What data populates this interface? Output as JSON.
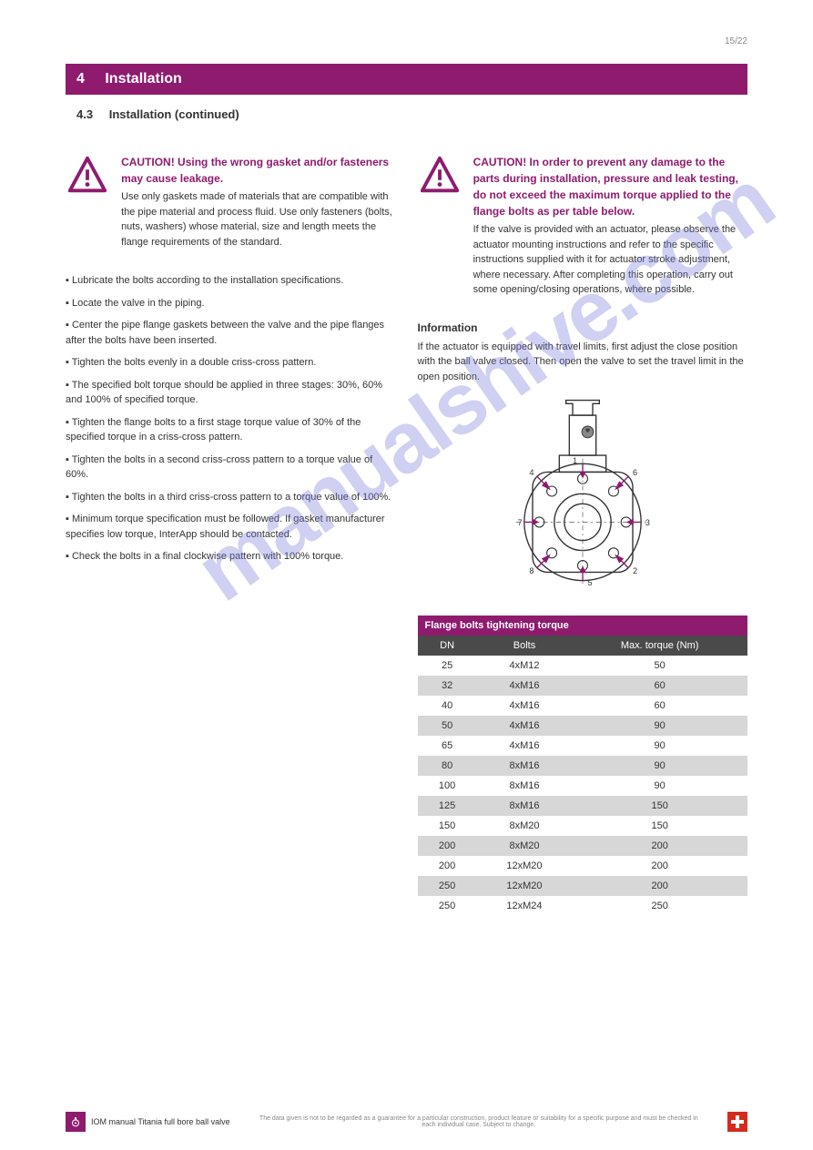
{
  "page_num_top": "15/22",
  "header": {
    "section_num": "4",
    "title": "Installation",
    "subtitle_num": "4.3",
    "subtitle": "Installation (continued)"
  },
  "left_column": {
    "caution": {
      "title": "CAUTION! Using the wrong gasket and/or fasteners may cause leakage.",
      "body": "Use only gaskets made of materials that are compatible with the pipe material and process fluid.\nUse only fasteners (bolts, nuts, washers) whose material, size and length meets the flange requirements of the standard."
    },
    "bullets": [
      "Lubricate the bolts according to the installation specifications.",
      "Locate the valve in the piping.",
      "Center the pipe flange gaskets between the valve and the pipe flanges after the bolts have been inserted.",
      "Tighten the bolts evenly in a double criss-cross pattern.",
      "The specified bolt torque should be applied in three stages: 30%, 60% and 100% of specified torque.",
      "Tighten the flange bolts to a first stage torque value of 30% of the specified torque in a criss-cross pattern.",
      "Tighten the bolts in a second criss-cross pattern to a torque value of 60%.",
      "Tighten the bolts in a third criss-cross pattern to a torque value of 100%.",
      "Minimum torque specification must be followed. If gasket manufacturer specifies low torque, InterApp should be contacted.",
      "Check the bolts in a final clockwise pattern with 100% torque."
    ]
  },
  "right_column": {
    "caution": {
      "title": "CAUTION! In order to prevent any damage to the parts during installation, pressure and leak testing, do not exceed the maximum torque applied to the flange bolts as per table below.",
      "body": "If the valve is provided with an actuator, please observe the actuator mounting instructions and refer to the specific instructions supplied with it for actuator stroke adjustment, where necessary. After completing this operation, carry out some opening/closing operations, where possible."
    },
    "info_title": "Information",
    "info_body": "If the actuator is equipped with travel limits, first adjust the close position with the ball valve closed. Then open the valve to set the travel limit in the open position.",
    "diagram_labels": [
      "1",
      "2",
      "3",
      "4",
      "5",
      "6",
      "7",
      "8"
    ],
    "table": {
      "title": "Flange bolts tightening torque",
      "headers": [
        "DN",
        "Bolts",
        "Max. torque (Nm)"
      ],
      "rows": [
        [
          "25",
          "4xM12",
          "50"
        ],
        [
          "32",
          "4xM16",
          "60"
        ],
        [
          "40",
          "4xM16",
          "60"
        ],
        [
          "50",
          "4xM16",
          "90"
        ],
        [
          "65",
          "4xM16",
          "90"
        ],
        [
          "80",
          "8xM16",
          "90"
        ],
        [
          "100",
          "8xM16",
          "90"
        ],
        [
          "125",
          "8xM16",
          "150"
        ],
        [
          "150",
          "8xM20",
          "150"
        ],
        [
          "200",
          "8xM20",
          "200"
        ],
        [
          "200",
          "12xM20",
          "200"
        ],
        [
          "250",
          "12xM20",
          "200"
        ],
        [
          "250",
          "12xM24",
          "250"
        ]
      ]
    }
  },
  "footer": {
    "left_text": "IOM manual Titania full bore ball valve",
    "right_text": "The data given is not to be regarded as a guarantee for a particular construction, product feature or suitability for a specific purpose and must be checked in",
    "right_text2": "each individual case. Subject to change."
  },
  "watermark": "manualshive.com",
  "colors": {
    "brand": "#8e1b6e",
    "subhead": "#4a4a4a",
    "row_even": "#d7d7d7",
    "flag_red": "#d52b1e"
  }
}
